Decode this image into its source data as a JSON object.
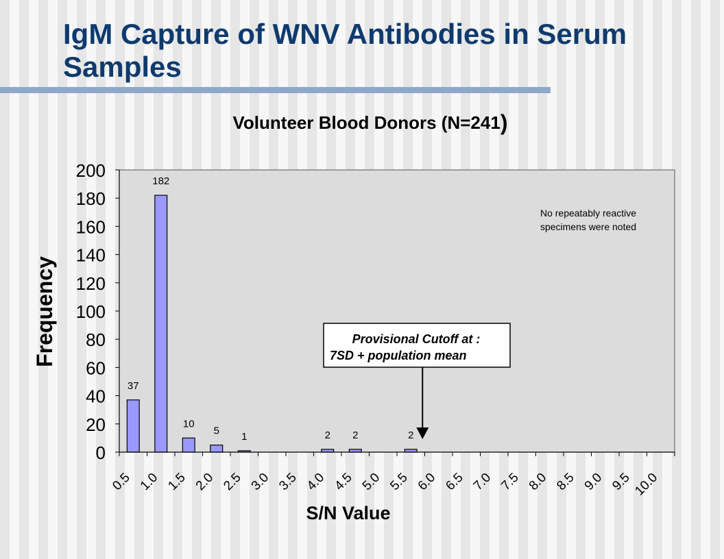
{
  "slide": {
    "title": "IgM Capture of WNV Antibodies in Serum Samples"
  },
  "chart_data": {
    "type": "bar",
    "title": "Volunteer Blood Donors  (N=241",
    "title_paren": ")",
    "xlabel": "S/N Value",
    "ylabel": "Frequency",
    "ylim": [
      0,
      200
    ],
    "yticks": [
      "0",
      "20",
      "40",
      "60",
      "80",
      "100",
      "120",
      "140",
      "160",
      "180",
      "200"
    ],
    "categories": [
      "0.5",
      "1.0",
      "1.5",
      "2.0",
      "2.5",
      "3.0",
      "3.5",
      "4.0",
      "4.5",
      "5.0",
      "5.5",
      "6.0",
      "6.5",
      "7.0",
      "7.5",
      "8.0",
      "8.5",
      "9.0",
      "9.5",
      "10.0"
    ],
    "values": [
      37,
      182,
      10,
      5,
      1,
      0,
      0,
      2,
      2,
      0,
      2,
      0,
      0,
      0,
      0,
      0,
      0,
      0,
      0,
      0
    ],
    "value_labels": [
      "37",
      "182",
      "10",
      "5",
      "1",
      "",
      "",
      "2",
      "2",
      "",
      "2",
      "",
      "",
      "",
      "",
      "",
      "",
      "",
      "",
      ""
    ],
    "grid": false,
    "bar_color": "#9999ff",
    "plot_bg": "#dcdcdc",
    "annotations": {
      "note": [
        "No repeatably reactive",
        "specimens were noted"
      ],
      "cutoff_box": [
        "Provisional Cutoff at :",
        "7SD + population mean"
      ],
      "cutoff_arrow_at": 5.5
    }
  }
}
